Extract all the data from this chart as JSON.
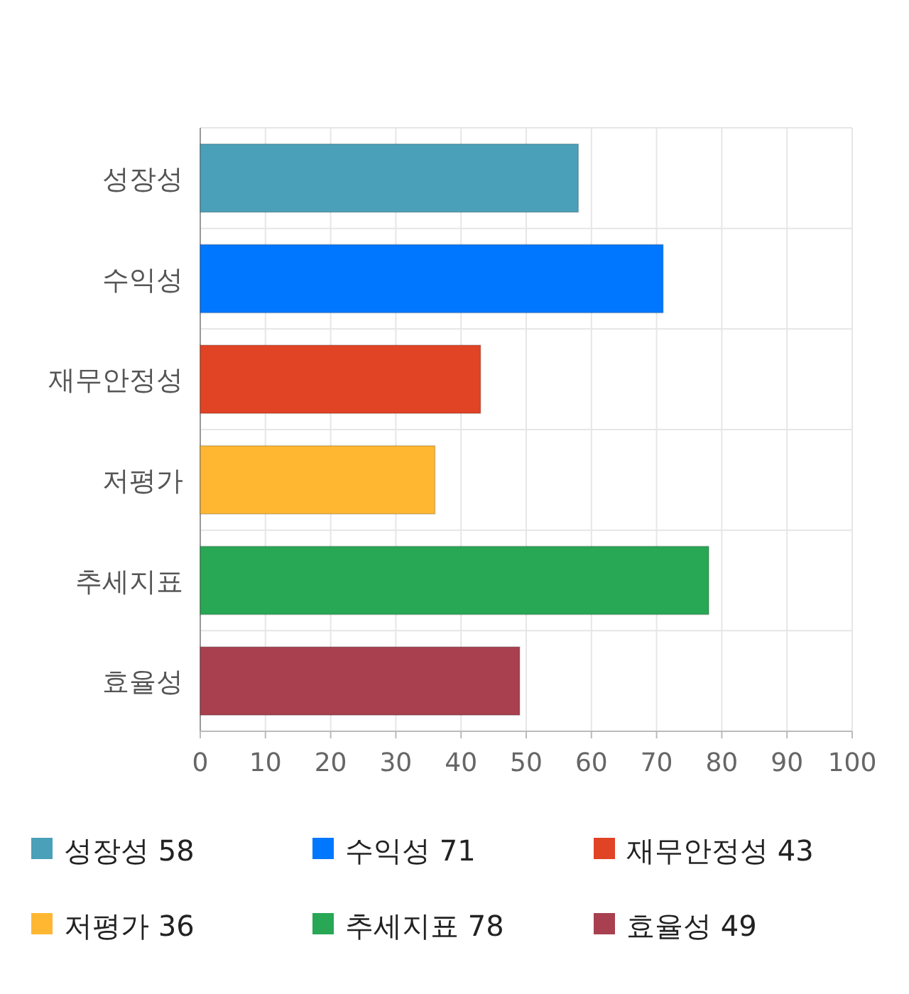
{
  "chart_data": {
    "type": "bar",
    "orientation": "horizontal",
    "categories": [
      "성장성",
      "수익성",
      "재무안정성",
      "저평가",
      "추세지표",
      "효율성"
    ],
    "series": [
      {
        "name": "성장성 58",
        "color": "#4aa0b8",
        "values": [
          58,
          null,
          null,
          null,
          null,
          null
        ]
      },
      {
        "name": "수익성 71",
        "color": "#0077ff",
        "values": [
          null,
          71,
          null,
          null,
          null,
          null
        ]
      },
      {
        "name": "재무안정성 43",
        "color": "#e14325",
        "values": [
          null,
          null,
          43,
          null,
          null,
          null
        ]
      },
      {
        "name": "저평가 36",
        "color": "#ffb732",
        "values": [
          null,
          null,
          null,
          36,
          null,
          null
        ]
      },
      {
        "name": "추세지표 78",
        "color": "#28a754",
        "values": [
          null,
          null,
          null,
          null,
          78,
          null
        ]
      },
      {
        "name": "효율성 49",
        "color": "#a8404f",
        "values": [
          null,
          null,
          null,
          null,
          null,
          49
        ]
      }
    ],
    "xlim": [
      0,
      100
    ],
    "xticks": [
      0,
      10,
      20,
      30,
      40,
      50,
      60,
      70,
      80,
      90,
      100
    ],
    "grid": true,
    "legend": "bottom"
  }
}
